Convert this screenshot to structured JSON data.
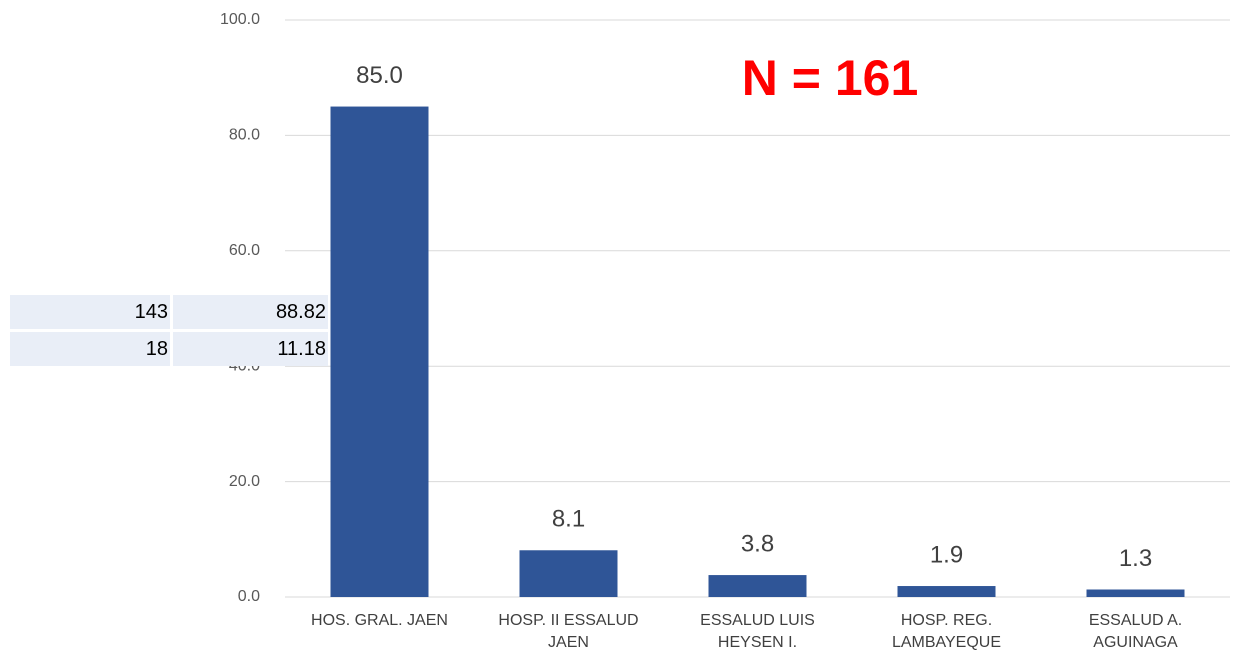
{
  "chart_data": {
    "type": "bar",
    "annotation": "N = 161",
    "categories": [
      "HOS. GRAL. JAEN",
      "HOSP. II ESSALUD JAEN",
      "ESSALUD LUIS HEYSEN I.",
      "HOSP. REG. LAMBAYEQUE",
      "ESSALUD A. AGUINAGA"
    ],
    "values": [
      85.0,
      8.1,
      3.8,
      1.9,
      1.3
    ],
    "value_labels": [
      "85.0",
      "8.1",
      "3.8",
      "1.9",
      "1.3"
    ],
    "color": "#2f5597",
    "ylim": [
      0,
      100
    ],
    "yticks": [
      {
        "value": 0,
        "label": "0.0"
      },
      {
        "value": 20,
        "label": "20.0"
      },
      {
        "value": 40,
        "label": "40.0"
      },
      {
        "value": 60,
        "label": "60.0"
      },
      {
        "value": 80,
        "label": "80.0"
      },
      {
        "value": 100,
        "label": "100.0"
      }
    ],
    "grid": true
  },
  "overlay_table": {
    "rows": [
      [
        "143",
        "88.82"
      ],
      [
        "18",
        "11.18"
      ]
    ]
  }
}
